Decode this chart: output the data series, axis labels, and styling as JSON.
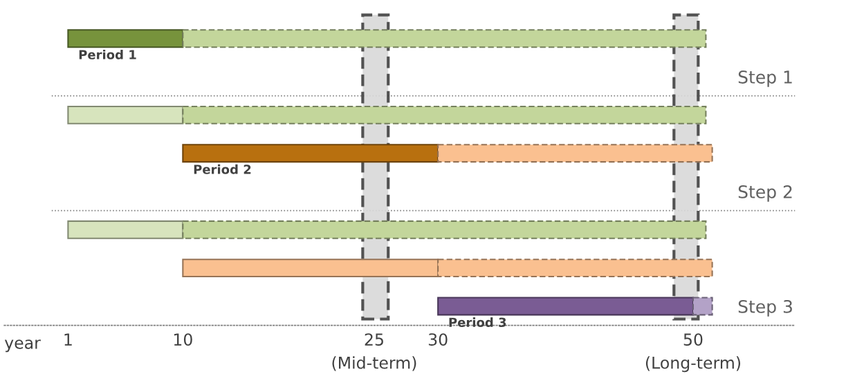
{
  "chart_data": {
    "type": "bar",
    "orientation": "horizontal",
    "categories": [
      null,
      "Step 1",
      null,
      null,
      "Step 2",
      null,
      null,
      "Step 3"
    ],
    "xlabel": "year",
    "xlim": [
      -4,
      58
    ],
    "xticks": [
      1,
      10,
      {
        "value": 25,
        "label": "25\n(Mid-term)"
      },
      30,
      {
        "value": 50,
        "label": "50\n(Long-term)"
      }
    ],
    "grid": "y",
    "series": [
      {
        "name": "Period 1",
        "values": [
          9,
          null,
          9,
          null,
          null,
          9,
          null,
          null
        ],
        "base": [
          1,
          null,
          1,
          null,
          null,
          1,
          null,
          null
        ],
        "colors": [
          "#77933c",
          null,
          "#d7e4bd",
          null,
          null,
          "#d7e4bd",
          null,
          null
        ]
      },
      {
        "name": "Period 2",
        "values": [
          null,
          null,
          null,
          20,
          null,
          null,
          20,
          null
        ],
        "base": [
          null,
          null,
          null,
          10,
          null,
          null,
          10,
          null
        ],
        "colors": [
          null,
          null,
          null,
          "#b8700f",
          null,
          null,
          "#fac090",
          null
        ]
      },
      {
        "name": "Period 3",
        "values": [
          null,
          null,
          null,
          null,
          null,
          null,
          null,
          20
        ],
        "base": [
          null,
          null,
          null,
          null,
          null,
          null,
          null,
          30
        ],
        "colors": [
          null,
          null,
          null,
          null,
          null,
          null,
          null,
          "#7a5c94"
        ]
      },
      {
        "values": [
          41,
          null,
          41,
          null,
          null,
          41,
          null,
          null
        ],
        "base": [
          10,
          null,
          10,
          null,
          null,
          10,
          null,
          null
        ],
        "colors": [
          "#c3d69b",
          null,
          "#c3d69b",
          null,
          null,
          "#c3d69b",
          null,
          null
        ],
        "line_style": "dashed"
      },
      {
        "values": [
          null,
          null,
          null,
          21.5,
          null,
          null,
          21.5,
          null
        ],
        "base": [
          null,
          null,
          null,
          30,
          null,
          null,
          30,
          null
        ],
        "colors": [
          null,
          null,
          null,
          "#fac090",
          null,
          null,
          "#fac090",
          null
        ],
        "line_style": "dashed"
      },
      {
        "values": [
          null,
          null,
          null,
          null,
          null,
          null,
          null,
          1.5
        ],
        "base": [
          null,
          null,
          null,
          null,
          null,
          null,
          null,
          50
        ],
        "colors": [
          null,
          null,
          null,
          null,
          null,
          null,
          null,
          "#b3a2c7"
        ],
        "line_style": "dashed"
      }
    ],
    "bands": [
      {
        "axis": "x",
        "from": 24.1,
        "to": 26.1,
        "color": "#d9d9d9"
      },
      {
        "axis": "x",
        "from": 48.5,
        "to": 50.4,
        "color": "#d9d9d9"
      }
    ]
  }
}
